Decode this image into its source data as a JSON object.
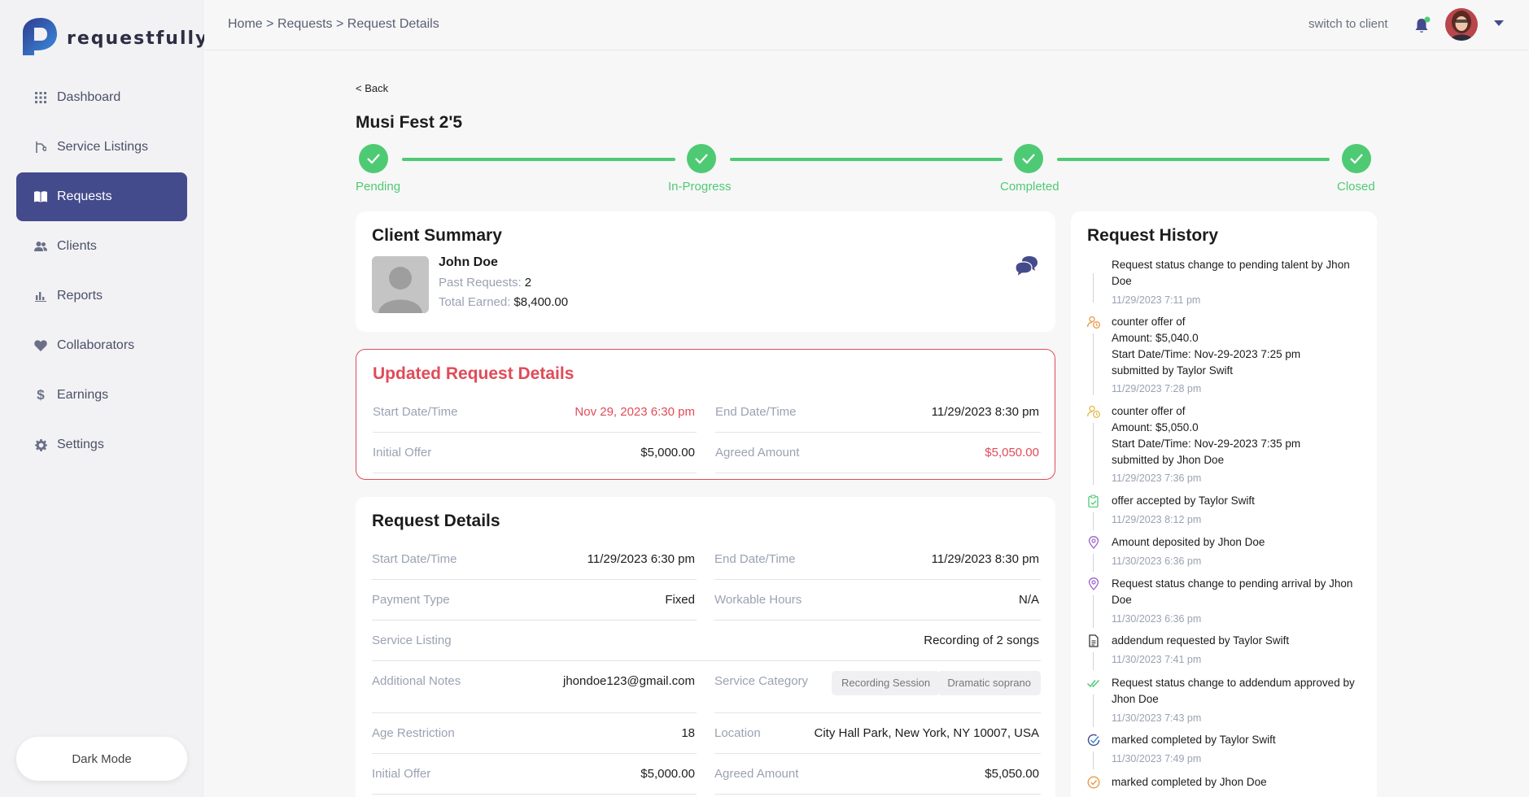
{
  "brand": {
    "name": "requestfully"
  },
  "sidebar": {
    "items": [
      {
        "label": "Dashboard",
        "icon": "grid-icon"
      },
      {
        "label": "Service Listings",
        "icon": "listing-icon"
      },
      {
        "label": "Requests",
        "icon": "book-icon",
        "active": true
      },
      {
        "label": "Clients",
        "icon": "users-icon"
      },
      {
        "label": "Reports",
        "icon": "bar-chart-icon"
      },
      {
        "label": "Collaborators",
        "icon": "heart-icon"
      },
      {
        "label": "Earnings",
        "icon": "dollar-icon"
      },
      {
        "label": "Settings",
        "icon": "gear-icon"
      }
    ],
    "dark_mode_label": "Dark Mode"
  },
  "topbar": {
    "breadcrumb": {
      "home": "Home",
      "sep": ">",
      "requests": "Requests",
      "current": "Request Details"
    },
    "switch_label": "switch to client"
  },
  "page": {
    "back_label": "< Back",
    "title": "Musi Fest 2'5"
  },
  "stepper": {
    "color": "#4fca74",
    "steps": [
      "Pending",
      "In-Progress",
      "Completed",
      "Closed"
    ]
  },
  "client_summary": {
    "title": "Client Summary",
    "name": "John Doe",
    "past_requests_label": "Past Requests:",
    "past_requests": "2",
    "total_earned_label": "Total Earned:",
    "total_earned": "$8,400.00"
  },
  "updated_details": {
    "title": "Updated Request Details",
    "accent": "#e04b58",
    "start_label": "Start Date/Time",
    "start_value": "Nov 29, 2023 6:30 pm",
    "end_label": "End Date/Time",
    "end_value": "11/29/2023 8:30 pm",
    "initial_offer_label": "Initial Offer",
    "initial_offer_value": "$5,000.00",
    "agreed_label": "Agreed Amount",
    "agreed_value": "$5,050.00"
  },
  "request_details": {
    "title": "Request Details",
    "start_label": "Start Date/Time",
    "start_value": "11/29/2023 6:30 pm",
    "end_label": "End Date/Time",
    "end_value": "11/29/2023 8:30 pm",
    "payment_type_label": "Payment Type",
    "payment_type_value": "Fixed",
    "workable_hours_label": "Workable Hours",
    "workable_hours_value": "N/A",
    "service_listing_label": "Service Listing",
    "service_listing_value": "Recording of 2 songs",
    "notes_label": "Additional Notes",
    "notes_value": "jhondoe123@gmail.com",
    "category_label": "Service Category",
    "categories": [
      "Recording Session",
      "Dramatic soprano"
    ],
    "age_label": "Age Restriction",
    "age_value": "18",
    "location_label": "Location",
    "location_value": "City Hall Park, New York, NY 10007, USA",
    "initial_offer_label": "Initial Offer",
    "initial_offer_value": "$5,000.00",
    "agreed_label": "Agreed Amount",
    "agreed_value": "$5,050.00"
  },
  "history": {
    "title": "Request History",
    "items": [
      {
        "icon": "none",
        "lines": [
          "Request status change to pending talent by Jhon Doe"
        ],
        "time": "11/29/2023 7:11 pm"
      },
      {
        "icon": "user-clock-icon",
        "lines": [
          "counter offer of",
          "Amount: $5,040.0",
          "Start Date/Time: Nov-29-2023 7:25 pm",
          "submitted by Taylor Swift"
        ],
        "time": "11/29/2023 7:28 pm"
      },
      {
        "icon": "user-clock-icon",
        "lines": [
          "counter offer of",
          "Amount: $5,050.0",
          "Start Date/Time: Nov-29-2023 7:35 pm",
          "submitted by Jhon Doe"
        ],
        "time": "11/29/2023 7:36 pm"
      },
      {
        "icon": "clipboard-check-icon",
        "lines": [
          "offer accepted by Taylor Swift"
        ],
        "time": "11/29/2023 8:12 pm"
      },
      {
        "icon": "map-pin-icon",
        "lines": [
          "Amount deposited by Jhon Doe"
        ],
        "time": "11/30/2023 6:36 pm"
      },
      {
        "icon": "map-pin-icon",
        "lines": [
          "Request status change to pending arrival by Jhon Doe"
        ],
        "time": "11/30/2023 6:36 pm"
      },
      {
        "icon": "document-icon",
        "lines": [
          "addendum requested by Taylor Swift"
        ],
        "time": "11/30/2023 7:41 pm"
      },
      {
        "icon": "double-check-icon",
        "lines": [
          "Request status change to addendum approved by Jhon Doe"
        ],
        "time": "11/30/2023 7:43 pm"
      },
      {
        "icon": "circle-check-blue-icon",
        "lines": [
          "marked completed by Taylor Swift"
        ],
        "time": "11/30/2023 7:49 pm"
      },
      {
        "icon": "circle-check-orange-icon",
        "lines": [
          "marked completed by Jhon Doe"
        ],
        "time": ""
      }
    ]
  }
}
